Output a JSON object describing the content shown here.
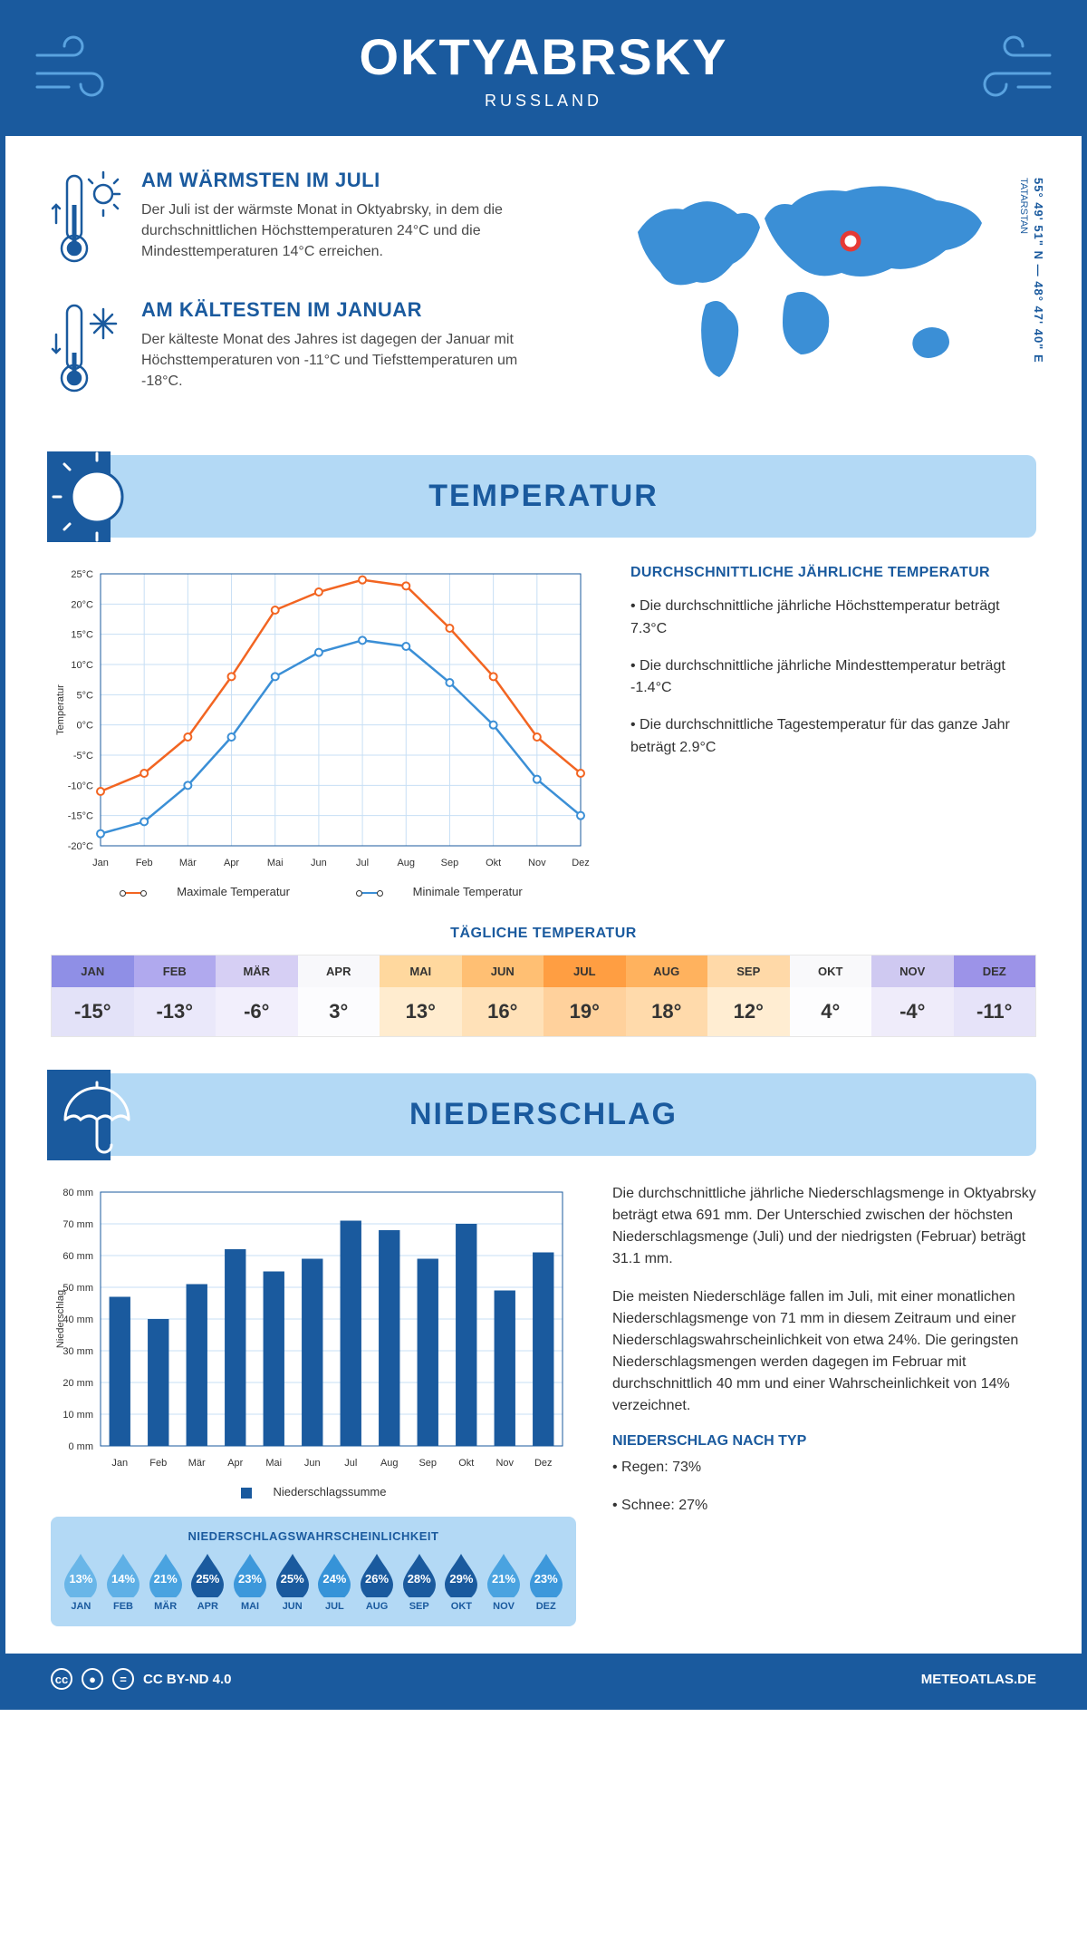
{
  "header": {
    "title": "OKTYABRSKY",
    "subtitle": "RUSSLAND"
  },
  "coords": "55° 49' 51\" N — 48° 47' 40\" E",
  "region": "TATARSTAN",
  "warmest": {
    "title": "AM WÄRMSTEN IM JULI",
    "text": "Der Juli ist der wärmste Monat in Oktyabrsky, in dem die durchschnittlichen Höchsttemperaturen 24°C und die Mindesttemperaturen 14°C erreichen."
  },
  "coldest": {
    "title": "AM KÄLTESTEN IM JANUAR",
    "text": "Der kälteste Monat des Jahres ist dagegen der Januar mit Höchsttemperaturen von -11°C und Tiefsttemperaturen um -18°C."
  },
  "temp_section_title": "TEMPERATUR",
  "temp_chart": {
    "type": "line",
    "months": [
      "Jan",
      "Feb",
      "Mär",
      "Apr",
      "Mai",
      "Jun",
      "Jul",
      "Aug",
      "Sep",
      "Okt",
      "Nov",
      "Dez"
    ],
    "max_series": [
      -11,
      -8,
      -2,
      8,
      19,
      22,
      24,
      23,
      16,
      8,
      -2,
      -8
    ],
    "min_series": [
      -18,
      -16,
      -10,
      -2,
      8,
      12,
      14,
      13,
      7,
      0,
      -9,
      -15
    ],
    "ylim": [
      -20,
      25
    ],
    "ytick_step": 5,
    "ylabel": "Temperatur",
    "max_color": "#f26522",
    "min_color": "#3b8fd6",
    "grid_color": "#c7dff5",
    "axis_color": "#1a5a9e",
    "legend_max": "Maximale Temperatur",
    "legend_min": "Minimale Temperatur",
    "label_fontsize": 11
  },
  "temp_info": {
    "heading": "DURCHSCHNITTLICHE JÄHRLICHE TEMPERATUR",
    "bullet1": "• Die durchschnittliche jährliche Höchsttemperatur beträgt 7.3°C",
    "bullet2": "• Die durchschnittliche jährliche Mindesttemperatur beträgt -1.4°C",
    "bullet3": "• Die durchschnittliche Tagestemperatur für das ganze Jahr beträgt 2.9°C"
  },
  "daily_temp": {
    "title": "TÄGLICHE TEMPERATUR",
    "months": [
      "JAN",
      "FEB",
      "MÄR",
      "APR",
      "MAI",
      "JUN",
      "JUL",
      "AUG",
      "SEP",
      "OKT",
      "NOV",
      "DEZ"
    ],
    "values": [
      "-15°",
      "-13°",
      "-6°",
      "3°",
      "13°",
      "16°",
      "19°",
      "18°",
      "12°",
      "4°",
      "-4°",
      "-11°"
    ],
    "header_colors": [
      "#8f8fe6",
      "#b0a9ee",
      "#d6cff4",
      "#f8f8fb",
      "#ffd89e",
      "#ffbf73",
      "#ff9e42",
      "#ffb25e",
      "#ffd9a8",
      "#f9f9fb",
      "#cfc9f1",
      "#9c93e8"
    ],
    "body_colors": [
      "#e3e2f8",
      "#eae8fa",
      "#f2effc",
      "#fcfcfe",
      "#ffeccf",
      "#ffe1b8",
      "#ffd19c",
      "#ffdaab",
      "#ffedd2",
      "#fdfdfe",
      "#efecfa",
      "#e6e3f9"
    ]
  },
  "precip_section_title": "NIEDERSCHLAG",
  "precip_chart": {
    "type": "bar",
    "months": [
      "Jan",
      "Feb",
      "Mär",
      "Apr",
      "Mai",
      "Jun",
      "Jul",
      "Aug",
      "Sep",
      "Okt",
      "Nov",
      "Dez"
    ],
    "values": [
      47,
      40,
      51,
      62,
      55,
      59,
      71,
      68,
      59,
      70,
      49,
      61
    ],
    "ylim": [
      0,
      80
    ],
    "ytick_step": 10,
    "ylabel": "Niederschlag",
    "bar_color": "#1a5a9e",
    "grid_color": "#c7dff5",
    "axis_color": "#1a5a9e",
    "legend": "Niederschlagssumme",
    "label_fontsize": 11
  },
  "precip_text1": "Die durchschnittliche jährliche Niederschlagsmenge in Oktyabrsky beträgt etwa 691 mm. Der Unterschied zwischen der höchsten Niederschlagsmenge (Juli) und der niedrigsten (Februar) beträgt 31.1 mm.",
  "precip_text2": "Die meisten Niederschläge fallen im Juli, mit einer monatlichen Niederschlagsmenge von 71 mm in diesem Zeitraum und einer Niederschlagswahrscheinlichkeit von etwa 24%. Die geringsten Niederschlagsmengen werden dagegen im Februar mit durchschnittlich 40 mm und einer Wahrscheinlichkeit von 14% verzeichnet.",
  "precip_type_heading": "NIEDERSCHLAG NACH TYP",
  "precip_type1": "• Regen: 73%",
  "precip_type2": "• Schnee: 27%",
  "prob": {
    "title": "NIEDERSCHLAGSWAHRSCHEINLICHKEIT",
    "months": [
      "JAN",
      "FEB",
      "MÄR",
      "APR",
      "MAI",
      "JUN",
      "JUL",
      "AUG",
      "SEP",
      "OKT",
      "NOV",
      "DEZ"
    ],
    "values": [
      "13%",
      "14%",
      "21%",
      "25%",
      "23%",
      "25%",
      "24%",
      "26%",
      "28%",
      "29%",
      "21%",
      "23%"
    ],
    "colors": [
      "#69b6e8",
      "#5fb0e6",
      "#4aa3e0",
      "#1a5a9e",
      "#3d98db",
      "#1a5a9e",
      "#3693d8",
      "#1a5a9e",
      "#1a5a9e",
      "#1a5a9e",
      "#4aa3e0",
      "#3d98db"
    ]
  },
  "footer": {
    "license": "CC BY-ND 4.0",
    "site": "METEOATLAS.DE"
  }
}
